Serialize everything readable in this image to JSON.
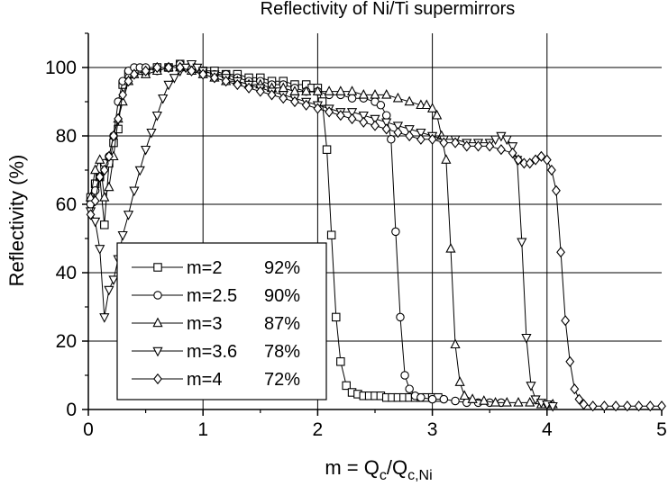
{
  "chart_data": {
    "type": "line",
    "title": "Reflectivity of Ni/Ti supermirrors",
    "xlabel_base": "m = Q",
    "xlabel_sub1": "c",
    "xlabel_mid": "/Q",
    "xlabel_sub2": "c,Ni",
    "ylabel": "Reflectivity (%)",
    "xlim": [
      0,
      5
    ],
    "ylim": [
      0,
      110
    ],
    "x_ticks": [
      "0",
      "1",
      "2",
      "3",
      "4",
      "5"
    ],
    "y_ticks": [
      "0",
      "20",
      "40",
      "60",
      "80",
      "100"
    ],
    "grid": "vertical at integer m, horizontal every 20%",
    "legend_position": "lower-left",
    "series": [
      {
        "name": "m=2",
        "percent": "92%",
        "marker": "square",
        "points": [
          [
            0.02,
            62
          ],
          [
            0.06,
            66
          ],
          [
            0.1,
            68
          ],
          [
            0.14,
            54
          ],
          [
            0.18,
            72
          ],
          [
            0.22,
            78
          ],
          [
            0.26,
            82
          ],
          [
            0.3,
            95
          ],
          [
            0.35,
            98
          ],
          [
            0.4,
            99
          ],
          [
            0.5,
            99
          ],
          [
            0.6,
            100
          ],
          [
            0.7,
            100
          ],
          [
            0.8,
            101
          ],
          [
            0.9,
            100
          ],
          [
            1.0,
            99
          ],
          [
            1.1,
            99
          ],
          [
            1.2,
            98
          ],
          [
            1.3,
            98
          ],
          [
            1.4,
            97
          ],
          [
            1.5,
            97
          ],
          [
            1.6,
            96
          ],
          [
            1.7,
            96
          ],
          [
            1.8,
            95
          ],
          [
            1.9,
            95
          ],
          [
            1.95,
            94
          ],
          [
            2.0,
            94
          ],
          [
            2.04,
            90
          ],
          [
            2.08,
            76
          ],
          [
            2.12,
            51
          ],
          [
            2.16,
            27
          ],
          [
            2.2,
            14
          ],
          [
            2.25,
            7
          ],
          [
            2.3,
            5
          ],
          [
            2.35,
            4.5
          ],
          [
            2.4,
            4
          ],
          [
            2.45,
            4
          ],
          [
            2.5,
            4
          ],
          [
            2.55,
            4
          ],
          [
            2.6,
            3.5
          ],
          [
            2.65,
            3.5
          ],
          [
            2.7,
            3.5
          ],
          [
            2.75,
            3.5
          ],
          [
            2.8,
            3.5
          ],
          [
            2.85,
            3.5
          ],
          [
            2.9,
            3.5
          ],
          [
            2.95,
            3.5
          ],
          [
            3.0,
            3.5
          ],
          [
            3.05,
            3.5
          ]
        ]
      },
      {
        "name": "m=2.5",
        "percent": "90%",
        "marker": "circle",
        "points": [
          [
            0.02,
            60
          ],
          [
            0.06,
            64
          ],
          [
            0.1,
            68
          ],
          [
            0.14,
            72
          ],
          [
            0.18,
            74
          ],
          [
            0.22,
            80
          ],
          [
            0.26,
            90
          ],
          [
            0.3,
            96
          ],
          [
            0.35,
            99
          ],
          [
            0.4,
            100
          ],
          [
            0.45,
            100
          ],
          [
            0.5,
            100
          ],
          [
            0.6,
            99
          ],
          [
            0.7,
            100
          ],
          [
            0.8,
            101
          ],
          [
            0.9,
            100
          ],
          [
            1.0,
            99
          ],
          [
            1.1,
            98
          ],
          [
            1.2,
            98
          ],
          [
            1.3,
            97
          ],
          [
            1.4,
            96
          ],
          [
            1.5,
            96
          ],
          [
            1.6,
            95
          ],
          [
            1.7,
            95
          ],
          [
            1.8,
            94
          ],
          [
            1.9,
            93
          ],
          [
            2.0,
            93
          ],
          [
            2.1,
            92
          ],
          [
            2.2,
            92
          ],
          [
            2.3,
            91
          ],
          [
            2.4,
            91
          ],
          [
            2.5,
            90
          ],
          [
            2.55,
            89
          ],
          [
            2.6,
            86
          ],
          [
            2.64,
            79
          ],
          [
            2.68,
            52
          ],
          [
            2.72,
            27
          ],
          [
            2.76,
            10
          ],
          [
            2.8,
            6
          ],
          [
            2.85,
            4
          ],
          [
            2.9,
            3.5
          ],
          [
            3.0,
            3
          ],
          [
            3.1,
            3
          ],
          [
            3.2,
            2.5
          ],
          [
            3.3,
            2
          ],
          [
            3.4,
            2
          ],
          [
            3.5,
            2
          ],
          [
            3.6,
            2
          ]
        ]
      },
      {
        "name": "m=3",
        "percent": "87%",
        "marker": "triangle-up",
        "points": [
          [
            0.02,
            62
          ],
          [
            0.06,
            70
          ],
          [
            0.1,
            73
          ],
          [
            0.14,
            62
          ],
          [
            0.18,
            65
          ],
          [
            0.22,
            74
          ],
          [
            0.26,
            85
          ],
          [
            0.3,
            90
          ],
          [
            0.35,
            96
          ],
          [
            0.4,
            98
          ],
          [
            0.5,
            98
          ],
          [
            0.6,
            99
          ],
          [
            0.7,
            100
          ],
          [
            0.8,
            100
          ],
          [
            0.9,
            99
          ],
          [
            1.0,
            98
          ],
          [
            1.1,
            97
          ],
          [
            1.2,
            96
          ],
          [
            1.3,
            96
          ],
          [
            1.4,
            95
          ],
          [
            1.5,
            95
          ],
          [
            1.6,
            94
          ],
          [
            1.7,
            94
          ],
          [
            1.8,
            93
          ],
          [
            1.9,
            93
          ],
          [
            2.0,
            93
          ],
          [
            2.1,
            93
          ],
          [
            2.2,
            93
          ],
          [
            2.3,
            93
          ],
          [
            2.4,
            92
          ],
          [
            2.5,
            92
          ],
          [
            2.6,
            92
          ],
          [
            2.7,
            91
          ],
          [
            2.8,
            90
          ],
          [
            2.9,
            89
          ],
          [
            2.95,
            89
          ],
          [
            3.0,
            88
          ],
          [
            3.04,
            86
          ],
          [
            3.08,
            80
          ],
          [
            3.12,
            73
          ],
          [
            3.16,
            47
          ],
          [
            3.2,
            19
          ],
          [
            3.24,
            8
          ],
          [
            3.28,
            4
          ],
          [
            3.35,
            3
          ],
          [
            3.45,
            2.5
          ],
          [
            3.55,
            2
          ],
          [
            3.65,
            2
          ],
          [
            3.75,
            2
          ],
          [
            3.85,
            2
          ],
          [
            3.95,
            1.5
          ],
          [
            4.05,
            1.5
          ]
        ]
      },
      {
        "name": "m=3.6",
        "percent": "78%",
        "marker": "triangle-down",
        "points": [
          [
            0.02,
            58
          ],
          [
            0.06,
            55
          ],
          [
            0.1,
            47
          ],
          [
            0.14,
            27
          ],
          [
            0.18,
            35
          ],
          [
            0.22,
            38
          ],
          [
            0.26,
            44
          ],
          [
            0.3,
            51
          ],
          [
            0.35,
            57
          ],
          [
            0.4,
            64
          ],
          [
            0.45,
            70
          ],
          [
            0.5,
            76
          ],
          [
            0.55,
            81
          ],
          [
            0.6,
            86
          ],
          [
            0.65,
            91
          ],
          [
            0.7,
            95
          ],
          [
            0.75,
            97
          ],
          [
            0.8,
            99
          ],
          [
            0.85,
            100
          ],
          [
            0.9,
            101
          ],
          [
            0.95,
            100
          ],
          [
            1.0,
            99
          ],
          [
            1.1,
            98
          ],
          [
            1.2,
            97
          ],
          [
            1.3,
            96
          ],
          [
            1.4,
            95
          ],
          [
            1.5,
            94
          ],
          [
            1.6,
            93
          ],
          [
            1.7,
            92
          ],
          [
            1.8,
            91
          ],
          [
            1.9,
            90
          ],
          [
            2.0,
            89
          ],
          [
            2.1,
            88
          ],
          [
            2.2,
            87
          ],
          [
            2.3,
            87
          ],
          [
            2.4,
            86
          ],
          [
            2.5,
            85
          ],
          [
            2.6,
            84
          ],
          [
            2.7,
            83
          ],
          [
            2.8,
            82
          ],
          [
            2.9,
            81
          ],
          [
            3.0,
            80
          ],
          [
            3.1,
            79
          ],
          [
            3.2,
            79
          ],
          [
            3.3,
            78
          ],
          [
            3.4,
            78
          ],
          [
            3.5,
            78
          ],
          [
            3.55,
            79
          ],
          [
            3.6,
            80
          ],
          [
            3.65,
            79
          ],
          [
            3.7,
            77
          ],
          [
            3.74,
            73
          ],
          [
            3.78,
            49
          ],
          [
            3.82,
            21
          ],
          [
            3.86,
            7
          ],
          [
            3.9,
            3
          ],
          [
            3.95,
            2
          ],
          [
            4.0,
            1.5
          ],
          [
            4.05,
            1
          ]
        ]
      },
      {
        "name": "m=4",
        "percent": "72%",
        "marker": "diamond",
        "points": [
          [
            0.02,
            57
          ],
          [
            0.06,
            61
          ],
          [
            0.1,
            68
          ],
          [
            0.14,
            70
          ],
          [
            0.18,
            74
          ],
          [
            0.22,
            80
          ],
          [
            0.26,
            85
          ],
          [
            0.3,
            92
          ],
          [
            0.35,
            96
          ],
          [
            0.4,
            98
          ],
          [
            0.5,
            99
          ],
          [
            0.6,
            100
          ],
          [
            0.7,
            100
          ],
          [
            0.8,
            100
          ],
          [
            0.9,
            99
          ],
          [
            1.0,
            98
          ],
          [
            1.1,
            97
          ],
          [
            1.2,
            96
          ],
          [
            1.3,
            95
          ],
          [
            1.4,
            94
          ],
          [
            1.5,
            93
          ],
          [
            1.6,
            92
          ],
          [
            1.7,
            91
          ],
          [
            1.8,
            90
          ],
          [
            1.9,
            89
          ],
          [
            2.0,
            88
          ],
          [
            2.1,
            87
          ],
          [
            2.2,
            86
          ],
          [
            2.3,
            85
          ],
          [
            2.4,
            84
          ],
          [
            2.5,
            83
          ],
          [
            2.6,
            82
          ],
          [
            2.7,
            81
          ],
          [
            2.8,
            80
          ],
          [
            2.9,
            79
          ],
          [
            3.0,
            79
          ],
          [
            3.1,
            78
          ],
          [
            3.2,
            78
          ],
          [
            3.3,
            77
          ],
          [
            3.4,
            77
          ],
          [
            3.5,
            77
          ],
          [
            3.6,
            76
          ],
          [
            3.7,
            75
          ],
          [
            3.75,
            73
          ],
          [
            3.8,
            72
          ],
          [
            3.85,
            72
          ],
          [
            3.9,
            73
          ],
          [
            3.95,
            74
          ],
          [
            4.0,
            73
          ],
          [
            4.04,
            70
          ],
          [
            4.08,
            64
          ],
          [
            4.12,
            46
          ],
          [
            4.16,
            26
          ],
          [
            4.2,
            14
          ],
          [
            4.24,
            6
          ],
          [
            4.28,
            3
          ],
          [
            4.32,
            1.5
          ],
          [
            4.4,
            1
          ],
          [
            4.5,
            1
          ],
          [
            4.6,
            1
          ],
          [
            4.7,
            1
          ],
          [
            4.8,
            1
          ],
          [
            4.9,
            1
          ],
          [
            5.0,
            1
          ]
        ]
      }
    ]
  }
}
